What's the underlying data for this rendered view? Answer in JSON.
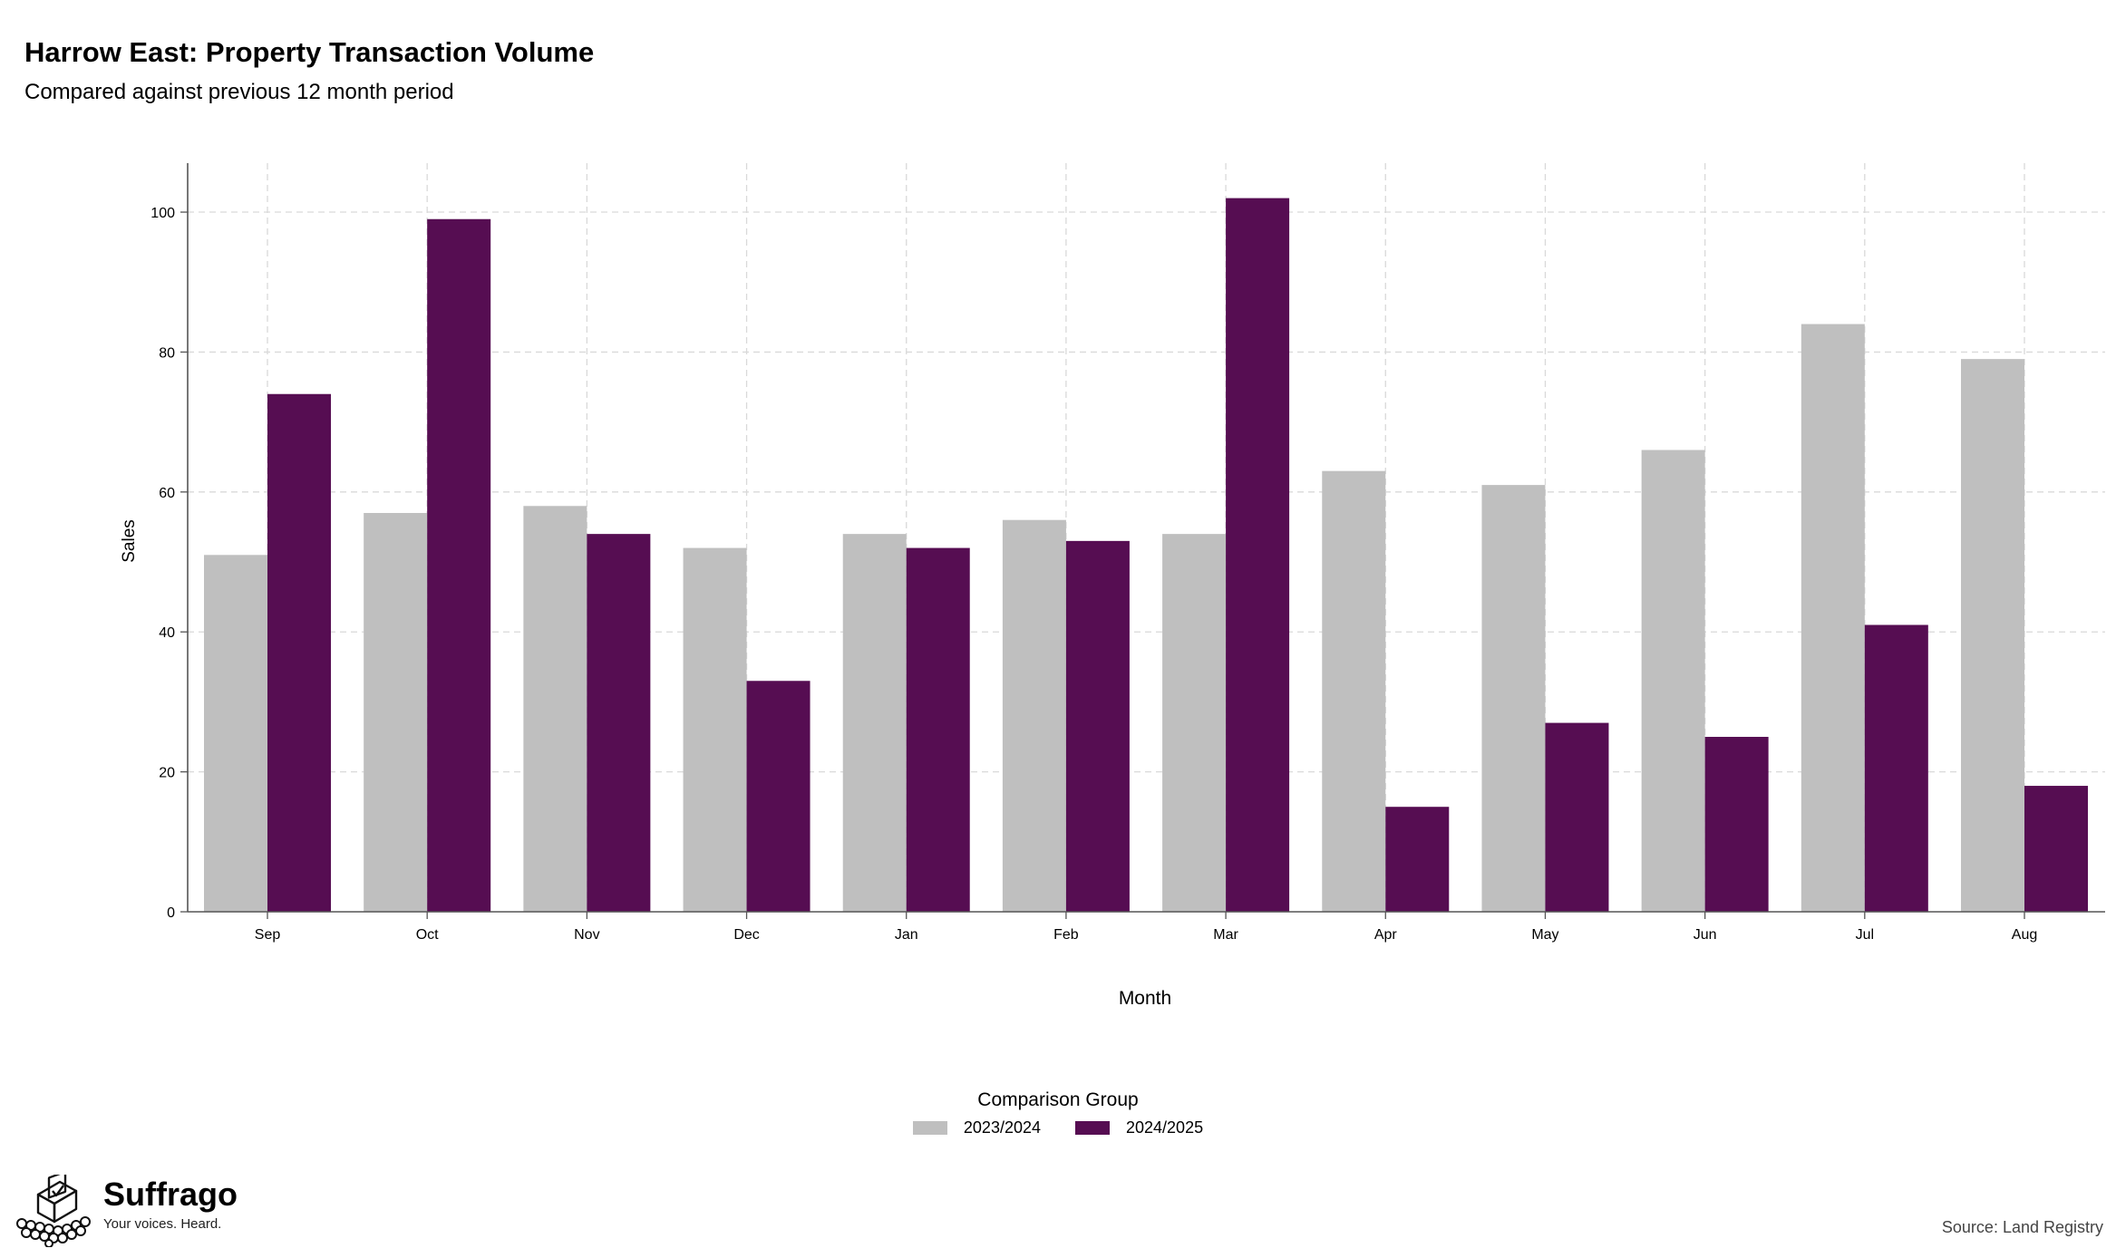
{
  "header": {
    "title": "Harrow East: Property Transaction Volume",
    "subtitle": "Compared against previous 12 month period"
  },
  "chart_data": {
    "type": "bar",
    "title": "Harrow East: Property Transaction Volume",
    "subtitle": "Compared against previous 12 month period",
    "xlabel": "Month",
    "ylabel": "Sales",
    "ylim": [
      0,
      107
    ],
    "yticks": [
      0,
      20,
      40,
      60,
      80,
      100
    ],
    "grid": true,
    "categories": [
      "Sep",
      "Oct",
      "Nov",
      "Dec",
      "Jan",
      "Feb",
      "Mar",
      "Apr",
      "May",
      "Jun",
      "Jul",
      "Aug"
    ],
    "series": [
      {
        "name": "2023/2024",
        "color": "#bfbfbf",
        "values": [
          51,
          57,
          58,
          52,
          54,
          56,
          54,
          63,
          61,
          66,
          84,
          79
        ]
      },
      {
        "name": "2024/2025",
        "color": "#560d52",
        "values": [
          74,
          99,
          54,
          33,
          52,
          53,
          102,
          15,
          27,
          25,
          41,
          18
        ]
      }
    ],
    "legend_title": "Comparison Group",
    "legend_position": "bottom"
  },
  "footer": {
    "brand_name": "Suffrago",
    "brand_tagline": "Your voices. Heard.",
    "brand_icon": "ballot-box-icon",
    "source": "Source: Land Registry"
  }
}
